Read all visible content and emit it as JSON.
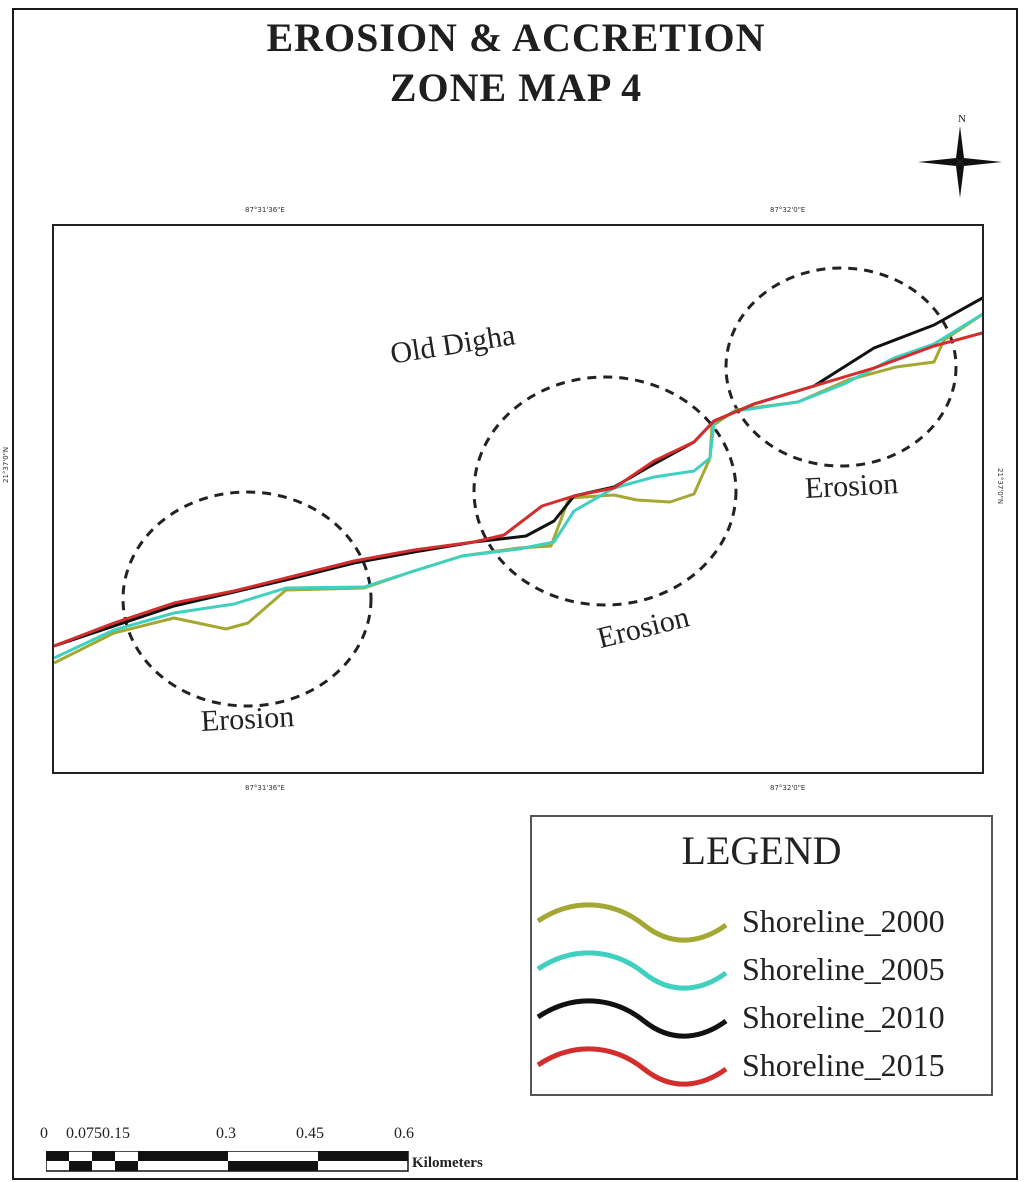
{
  "title": {
    "line1": "EROSION & ACCRETION",
    "line2": "ZONE MAP 4"
  },
  "north_arrow": {
    "label": "N",
    "icon": "north-arrow-icon"
  },
  "coordinates": {
    "top_left": "87°31'36\"E",
    "top_right": "87°32'0\"E",
    "bottom_left": "87°31'36\"E",
    "bottom_right": "87°32'0\"E",
    "left": "21°37'0\"N",
    "right": "21°37'0\"N"
  },
  "map_labels": {
    "place": "Old Digha",
    "zone_left": "Erosion",
    "zone_middle": "Erosion",
    "zone_right": "Erosion"
  },
  "legend": {
    "title": "LEGEND",
    "items": [
      {
        "label": "Shoreline_2000",
        "color": "#a3a833"
      },
      {
        "label": "Shoreline_2005",
        "color": "#3fd0c0"
      },
      {
        "label": "Shoreline_2010",
        "color": "#111111"
      },
      {
        "label": "Shoreline_2015",
        "color": "#d42d2d"
      }
    ]
  },
  "scale": {
    "ticks": [
      "0",
      "0.0750.15",
      "0.3",
      "0.45",
      "0.6"
    ],
    "units": "Kilometers"
  }
}
